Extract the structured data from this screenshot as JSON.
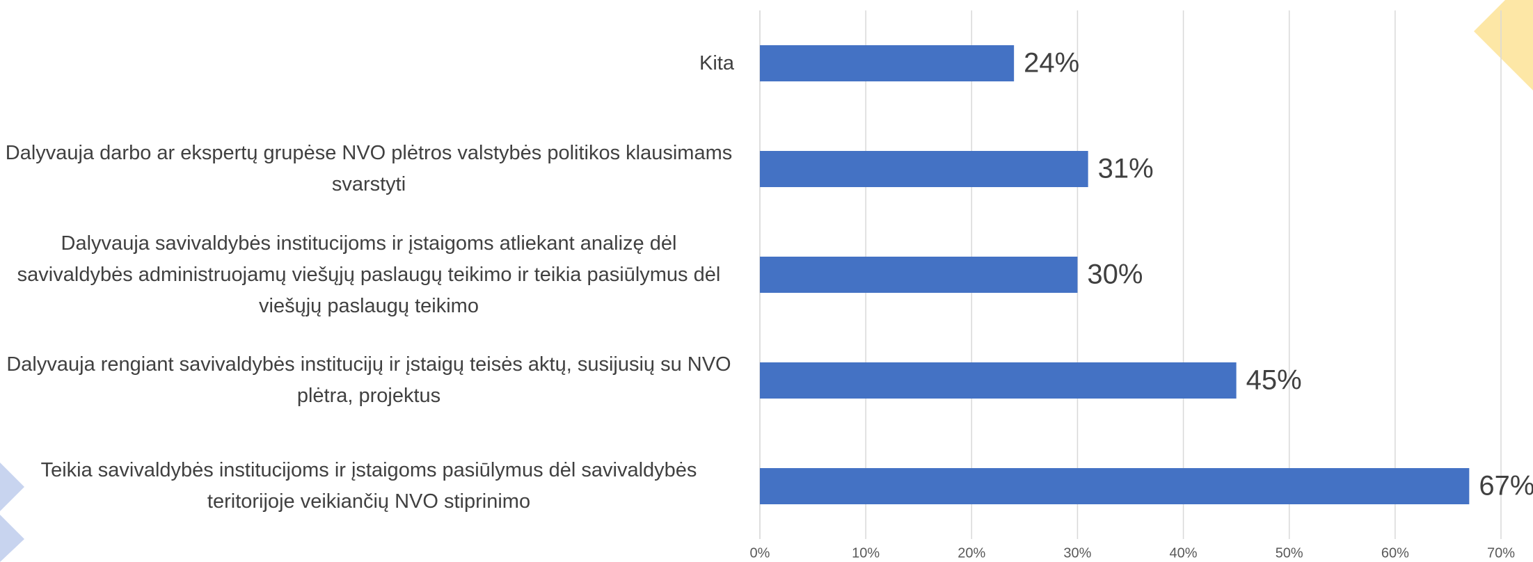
{
  "chart_data": {
    "type": "bar",
    "orientation": "horizontal",
    "categories": [
      "Kita",
      "Dalyvauja darbo ar ekspertų grupėse NVO plėtros valstybės politikos klausimams svarstyti",
      "Dalyvauja savivaldybės institucijoms ir įstaigoms atliekant analizę dėl savivaldybės administruojamų viešųjų paslaugų teikimo ir teikia pasiūlymus dėl viešųjų paslaugų teikimo",
      "Dalyvauja rengiant savivaldybės institucijų ir įstaigų teisės aktų, susijusių su NVO plėtra, projektus",
      "Teikia savivaldybės institucijoms ir įstaigoms pasiūlymus dėl savivaldybės teritorijoje veikiančių NVO stiprinimo"
    ],
    "values": [
      24,
      31,
      30,
      45,
      67
    ],
    "value_labels": [
      "24%",
      "31%",
      "30%",
      "45%",
      "67%"
    ],
    "color": "#4472c4",
    "xlim": [
      0,
      70
    ],
    "xticks": [
      {
        "value": 0,
        "label": "0%"
      },
      {
        "value": 10,
        "label": "10%"
      },
      {
        "value": 20,
        "label": "20%"
      },
      {
        "value": 30,
        "label": "30%"
      },
      {
        "value": 40,
        "label": "40%"
      },
      {
        "value": 50,
        "label": "50%"
      },
      {
        "value": 60,
        "label": "60%"
      },
      {
        "value": 70,
        "label": "70%"
      }
    ],
    "grid": true
  }
}
